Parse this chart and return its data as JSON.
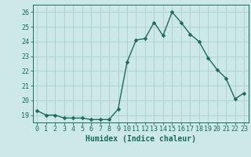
{
  "x": [
    0,
    1,
    2,
    3,
    4,
    5,
    6,
    7,
    8,
    9,
    10,
    11,
    12,
    13,
    14,
    15,
    16,
    17,
    18,
    19,
    20,
    21,
    22,
    23
  ],
  "y": [
    19.3,
    19.0,
    19.0,
    18.8,
    18.8,
    18.8,
    18.7,
    18.7,
    18.7,
    19.4,
    22.6,
    24.1,
    24.2,
    25.3,
    24.4,
    26.0,
    25.3,
    24.5,
    24.0,
    22.9,
    22.1,
    21.5,
    20.1,
    20.5
  ],
  "line_color": "#1a6b5e",
  "marker": "D",
  "marker_size": 2.5,
  "linewidth": 1.0,
  "bg_color": "#cce8e8",
  "grid_color": "#add0d0",
  "xlabel": "Humidex (Indice chaleur)",
  "xlabel_fontsize": 7.0,
  "tick_fontsize": 6.0,
  "ylim": [
    18.5,
    26.5
  ],
  "yticks": [
    19,
    20,
    21,
    22,
    23,
    24,
    25,
    26
  ],
  "xticks": [
    0,
    1,
    2,
    3,
    4,
    5,
    6,
    7,
    8,
    9,
    10,
    11,
    12,
    13,
    14,
    15,
    16,
    17,
    18,
    19,
    20,
    21,
    22,
    23
  ],
  "xlim": [
    -0.5,
    23.5
  ]
}
